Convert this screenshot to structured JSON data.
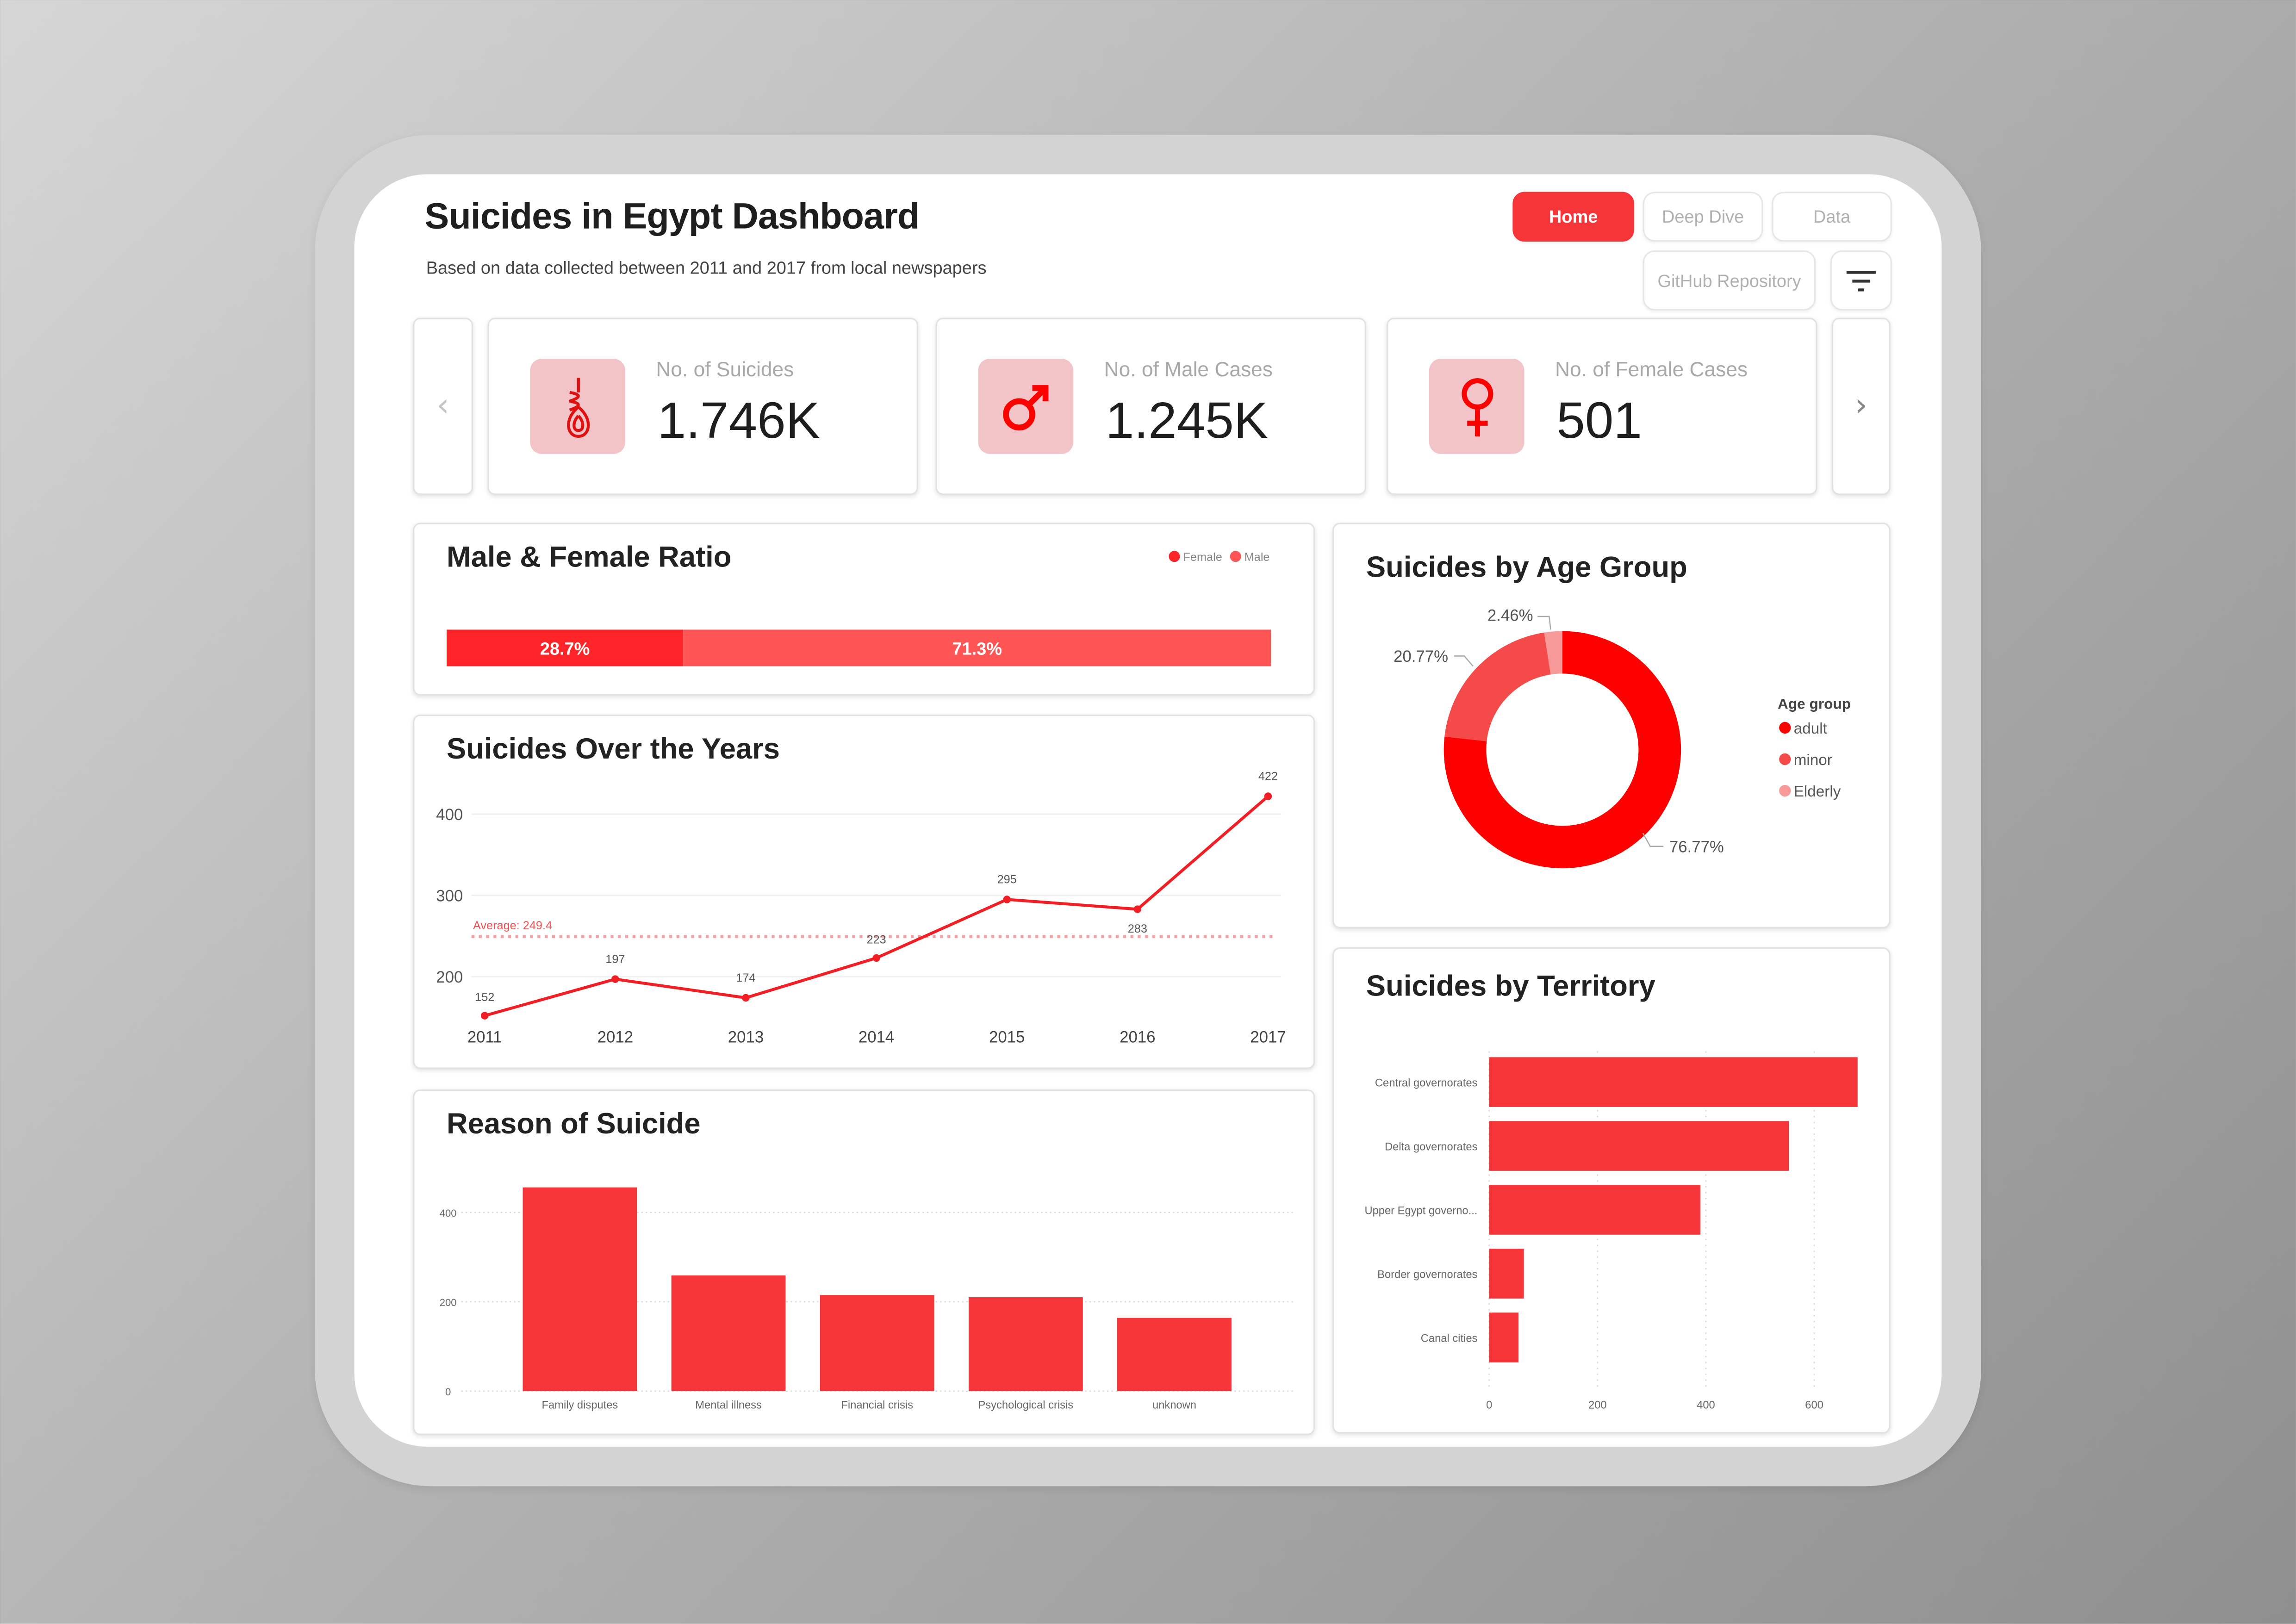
{
  "header": {
    "title": "Suicides in Egypt Dashboard",
    "subtitle": "Based on data collected between 2011 and 2017 from local newspapers"
  },
  "nav": {
    "home": "Home",
    "deep_dive": "Deep Dive",
    "data": "Data",
    "github": "GitHub Repository",
    "filter_icon": "filter-icon",
    "active": "Home"
  },
  "colors": {
    "accent": "#f63538",
    "bar": "#f63538",
    "line": "#f21e24",
    "female": "#ff2427",
    "male": "#ff5555",
    "adult": "#ff0000",
    "minor": "#f54a4a",
    "elderly": "#f99a9a",
    "icon_bg": "#f2c4c8"
  },
  "kpis": [
    {
      "label": "No. of Suicides",
      "value": "1.746K",
      "icon": "noose-icon"
    },
    {
      "label": "No. of Male Cases",
      "value": "1.245K",
      "icon": "male-symbol-icon"
    },
    {
      "label": "No. of Female Cases",
      "value": "501",
      "icon": "female-symbol-icon"
    }
  ],
  "kpi_nav": {
    "prev": "‹",
    "next": "›"
  },
  "chart_data": [
    {
      "type": "bar",
      "orientation": "stacked-horizontal-100",
      "title": "Male & Female Ratio",
      "legend": {
        "position": "top-right",
        "entries": [
          "Female",
          "Male"
        ]
      },
      "series": [
        {
          "name": "Female",
          "value": 28.7,
          "label": "28.7%"
        },
        {
          "name": "Male",
          "value": 71.3,
          "label": "71.3%"
        }
      ]
    },
    {
      "type": "line",
      "title": "Suicides Over the Years",
      "x": [
        "2011",
        "2012",
        "2013",
        "2014",
        "2015",
        "2016",
        "2017"
      ],
      "values": [
        152,
        197,
        174,
        223,
        295,
        283,
        422
      ],
      "y_ticks": [
        "200",
        "300",
        "400"
      ],
      "ylim": [
        130,
        430
      ],
      "average": {
        "label": "Average: 249.4",
        "value": 249.4
      },
      "grid": true
    },
    {
      "type": "bar",
      "title": "Reason of Suicide",
      "categories": [
        "Family disputes",
        "Mental illness",
        "Financial crisis",
        "Psychological crisis",
        "unknown"
      ],
      "values": [
        456,
        259,
        215,
        210,
        164
      ],
      "y_ticks": [
        "0",
        "200",
        "400"
      ],
      "ylim": [
        0,
        460
      ],
      "grid": true
    },
    {
      "type": "pie",
      "variant": "donut",
      "title": "Suicides by Age Group",
      "legend": {
        "title": "Age group",
        "position": "right",
        "entries": [
          "adult",
          "minor",
          "Elderly"
        ]
      },
      "slices": [
        {
          "name": "adult",
          "value": 76.77,
          "label": "76.77%"
        },
        {
          "name": "minor",
          "value": 20.77,
          "label": "20.77%"
        },
        {
          "name": "Elderly",
          "value": 2.46,
          "label": "2.46%"
        }
      ]
    },
    {
      "type": "bar",
      "orientation": "horizontal",
      "title": "Suicides by Territory",
      "categories": [
        "Central governorates",
        "Delta governorates",
        "Upper Egypt governo...",
        "Border governorates",
        "Canal cities"
      ],
      "values": [
        680,
        553,
        390,
        64,
        54
      ],
      "x_ticks": [
        "0",
        "200",
        "400",
        "600"
      ],
      "xlim": [
        0,
        690
      ],
      "grid": true
    }
  ]
}
